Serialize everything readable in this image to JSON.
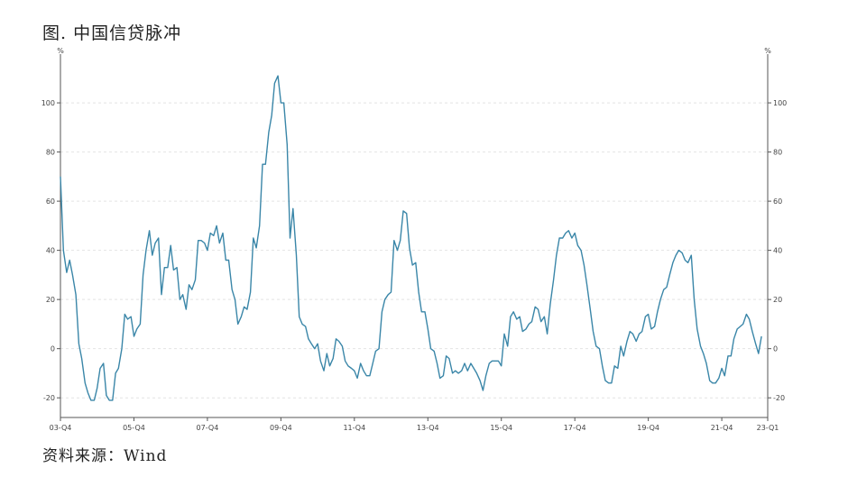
{
  "title": "图. 中国信贷脉冲",
  "source": "资料来源：Wind",
  "colors": {
    "line": "#3a86a8",
    "grid": "#e4e4e4",
    "axis": "#555555"
  },
  "chart_data": {
    "type": "line",
    "title": "图. 中国信贷脉冲",
    "unit_left": "%",
    "unit_right": "%",
    "ylim": [
      -28,
      118
    ],
    "yticks": [
      -20,
      0,
      20,
      40,
      60,
      80,
      100
    ],
    "xlim": [
      2003.75,
      2023.0
    ],
    "xticks": [
      {
        "label": "03-Q4",
        "x": 2003.75
      },
      {
        "label": "05-Q4",
        "x": 2005.75
      },
      {
        "label": "07-Q4",
        "x": 2007.75
      },
      {
        "label": "09-Q4",
        "x": 2009.75
      },
      {
        "label": "11-Q4",
        "x": 2011.75
      },
      {
        "label": "13-Q4",
        "x": 2013.75
      },
      {
        "label": "15-Q4",
        "x": 2015.75
      },
      {
        "label": "17-Q4",
        "x": 2017.75
      },
      {
        "label": "19-Q4",
        "x": 2019.75
      },
      {
        "label": "21-Q4",
        "x": 2021.75
      },
      {
        "label": "23-Q1",
        "x": 2023.0
      }
    ],
    "grid": true,
    "series": [
      {
        "points": [
          [
            2003.75,
            70
          ],
          [
            2003.83,
            40
          ],
          [
            2003.92,
            31
          ],
          [
            2004.0,
            36
          ],
          [
            2004.08,
            30
          ],
          [
            2004.17,
            22
          ],
          [
            2004.25,
            2
          ],
          [
            2004.33,
            -4
          ],
          [
            2004.42,
            -14
          ],
          [
            2004.5,
            -18
          ],
          [
            2004.58,
            -21
          ],
          [
            2004.67,
            -21
          ],
          [
            2004.75,
            -16
          ],
          [
            2004.83,
            -8
          ],
          [
            2004.92,
            -6
          ],
          [
            2005.0,
            -19
          ],
          [
            2005.08,
            -21
          ],
          [
            2005.17,
            -21
          ],
          [
            2005.25,
            -10
          ],
          [
            2005.33,
            -8
          ],
          [
            2005.42,
            0
          ],
          [
            2005.5,
            14
          ],
          [
            2005.58,
            12
          ],
          [
            2005.67,
            13
          ],
          [
            2005.75,
            5
          ],
          [
            2005.83,
            8
          ],
          [
            2005.92,
            10
          ],
          [
            2006.0,
            30
          ],
          [
            2006.08,
            40
          ],
          [
            2006.17,
            48
          ],
          [
            2006.25,
            38
          ],
          [
            2006.33,
            43
          ],
          [
            2006.42,
            45
          ],
          [
            2006.5,
            22
          ],
          [
            2006.58,
            33
          ],
          [
            2006.67,
            33
          ],
          [
            2006.75,
            42
          ],
          [
            2006.83,
            32
          ],
          [
            2006.92,
            33
          ],
          [
            2007.0,
            20
          ],
          [
            2007.08,
            22
          ],
          [
            2007.17,
            16
          ],
          [
            2007.25,
            26
          ],
          [
            2007.33,
            24
          ],
          [
            2007.42,
            28
          ],
          [
            2007.5,
            44
          ],
          [
            2007.58,
            44
          ],
          [
            2007.67,
            43
          ],
          [
            2007.75,
            40
          ],
          [
            2007.83,
            47
          ],
          [
            2007.92,
            46
          ],
          [
            2008.0,
            50
          ],
          [
            2008.08,
            43
          ],
          [
            2008.17,
            47
          ],
          [
            2008.25,
            36
          ],
          [
            2008.33,
            36
          ],
          [
            2008.42,
            24
          ],
          [
            2008.5,
            20
          ],
          [
            2008.58,
            10
          ],
          [
            2008.67,
            13
          ],
          [
            2008.75,
            17
          ],
          [
            2008.83,
            16
          ],
          [
            2008.92,
            23
          ],
          [
            2009.0,
            45
          ],
          [
            2009.08,
            41
          ],
          [
            2009.17,
            50
          ],
          [
            2009.25,
            75
          ],
          [
            2009.33,
            75
          ],
          [
            2009.42,
            88
          ],
          [
            2009.5,
            95
          ],
          [
            2009.58,
            108
          ],
          [
            2009.67,
            111
          ],
          [
            2009.75,
            100
          ],
          [
            2009.83,
            100
          ],
          [
            2009.92,
            83
          ],
          [
            2010.0,
            45
          ],
          [
            2010.08,
            57
          ],
          [
            2010.17,
            38
          ],
          [
            2010.25,
            13
          ],
          [
            2010.33,
            10
          ],
          [
            2010.42,
            9
          ],
          [
            2010.5,
            4
          ],
          [
            2010.58,
            2
          ],
          [
            2010.67,
            0
          ],
          [
            2010.75,
            2
          ],
          [
            2010.83,
            -5
          ],
          [
            2010.92,
            -9
          ],
          [
            2011.0,
            -2
          ],
          [
            2011.08,
            -7
          ],
          [
            2011.17,
            -4
          ],
          [
            2011.25,
            4
          ],
          [
            2011.33,
            3
          ],
          [
            2011.42,
            1
          ],
          [
            2011.5,
            -5
          ],
          [
            2011.58,
            -7
          ],
          [
            2011.67,
            -8
          ],
          [
            2011.75,
            -9
          ],
          [
            2011.83,
            -12
          ],
          [
            2011.92,
            -6
          ],
          [
            2012.0,
            -9
          ],
          [
            2012.08,
            -11
          ],
          [
            2012.17,
            -11
          ],
          [
            2012.25,
            -6
          ],
          [
            2012.33,
            -1
          ],
          [
            2012.42,
            0
          ],
          [
            2012.5,
            15
          ],
          [
            2012.58,
            20
          ],
          [
            2012.67,
            22
          ],
          [
            2012.75,
            23
          ],
          [
            2012.83,
            44
          ],
          [
            2012.92,
            40
          ],
          [
            2013.0,
            44
          ],
          [
            2013.08,
            56
          ],
          [
            2013.17,
            55
          ],
          [
            2013.25,
            41
          ],
          [
            2013.33,
            34
          ],
          [
            2013.42,
            35
          ],
          [
            2013.5,
            23
          ],
          [
            2013.58,
            15
          ],
          [
            2013.67,
            15
          ],
          [
            2013.75,
            8
          ],
          [
            2013.83,
            0
          ],
          [
            2013.92,
            -1
          ],
          [
            2014.0,
            -6
          ],
          [
            2014.08,
            -12
          ],
          [
            2014.17,
            -11
          ],
          [
            2014.25,
            -3
          ],
          [
            2014.33,
            -4
          ],
          [
            2014.42,
            -10
          ],
          [
            2014.5,
            -9
          ],
          [
            2014.58,
            -10
          ],
          [
            2014.67,
            -9
          ],
          [
            2014.75,
            -6
          ],
          [
            2014.83,
            -9
          ],
          [
            2014.92,
            -6
          ],
          [
            2015.0,
            -8
          ],
          [
            2015.08,
            -10
          ],
          [
            2015.17,
            -13
          ],
          [
            2015.25,
            -17
          ],
          [
            2015.33,
            -11
          ],
          [
            2015.42,
            -6
          ],
          [
            2015.5,
            -5
          ],
          [
            2015.58,
            -5
          ],
          [
            2015.67,
            -5
          ],
          [
            2015.75,
            -7
          ],
          [
            2015.83,
            6
          ],
          [
            2015.92,
            1
          ],
          [
            2016.0,
            13
          ],
          [
            2016.08,
            15
          ],
          [
            2016.17,
            12
          ],
          [
            2016.25,
            13
          ],
          [
            2016.33,
            7
          ],
          [
            2016.42,
            8
          ],
          [
            2016.5,
            10
          ],
          [
            2016.58,
            11
          ],
          [
            2016.67,
            17
          ],
          [
            2016.75,
            16
          ],
          [
            2016.83,
            11
          ],
          [
            2016.92,
            13
          ],
          [
            2017.0,
            6
          ],
          [
            2017.08,
            18
          ],
          [
            2017.17,
            28
          ],
          [
            2017.25,
            38
          ],
          [
            2017.33,
            45
          ],
          [
            2017.42,
            45
          ],
          [
            2017.5,
            47
          ],
          [
            2017.58,
            48
          ],
          [
            2017.67,
            45
          ],
          [
            2017.75,
            47
          ],
          [
            2017.83,
            42
          ],
          [
            2017.92,
            40
          ],
          [
            2018.0,
            34
          ],
          [
            2018.08,
            26
          ],
          [
            2018.17,
            16
          ],
          [
            2018.25,
            7
          ],
          [
            2018.33,
            1
          ],
          [
            2018.42,
            0
          ],
          [
            2018.5,
            -7
          ],
          [
            2018.58,
            -13
          ],
          [
            2018.67,
            -14
          ],
          [
            2018.75,
            -14
          ],
          [
            2018.83,
            -7
          ],
          [
            2018.92,
            -8
          ],
          [
            2019.0,
            1
          ],
          [
            2019.08,
            -3
          ],
          [
            2019.17,
            3
          ],
          [
            2019.25,
            7
          ],
          [
            2019.33,
            6
          ],
          [
            2019.42,
            3
          ],
          [
            2019.5,
            6
          ],
          [
            2019.58,
            7
          ],
          [
            2019.67,
            13
          ],
          [
            2019.75,
            14
          ],
          [
            2019.83,
            8
          ],
          [
            2019.92,
            9
          ],
          [
            2020.0,
            15
          ],
          [
            2020.08,
            20
          ],
          [
            2020.17,
            24
          ],
          [
            2020.25,
            25
          ],
          [
            2020.33,
            30
          ],
          [
            2020.42,
            35
          ],
          [
            2020.5,
            38
          ],
          [
            2020.58,
            40
          ],
          [
            2020.67,
            39
          ],
          [
            2020.75,
            36
          ],
          [
            2020.83,
            35
          ],
          [
            2020.92,
            38
          ],
          [
            2021.0,
            20
          ],
          [
            2021.08,
            8
          ],
          [
            2021.17,
            1
          ],
          [
            2021.25,
            -2
          ],
          [
            2021.33,
            -6
          ],
          [
            2021.42,
            -13
          ],
          [
            2021.5,
            -14
          ],
          [
            2021.58,
            -14
          ],
          [
            2021.67,
            -12
          ],
          [
            2021.75,
            -8
          ],
          [
            2021.83,
            -11
          ],
          [
            2021.92,
            -3
          ],
          [
            2022.0,
            -3
          ],
          [
            2022.08,
            4
          ],
          [
            2022.17,
            8
          ],
          [
            2022.25,
            9
          ],
          [
            2022.33,
            10
          ],
          [
            2022.42,
            14
          ],
          [
            2022.5,
            12
          ],
          [
            2022.58,
            7
          ],
          [
            2022.67,
            2
          ],
          [
            2022.75,
            -2
          ],
          [
            2022.83,
            5
          ]
        ]
      }
    ]
  }
}
